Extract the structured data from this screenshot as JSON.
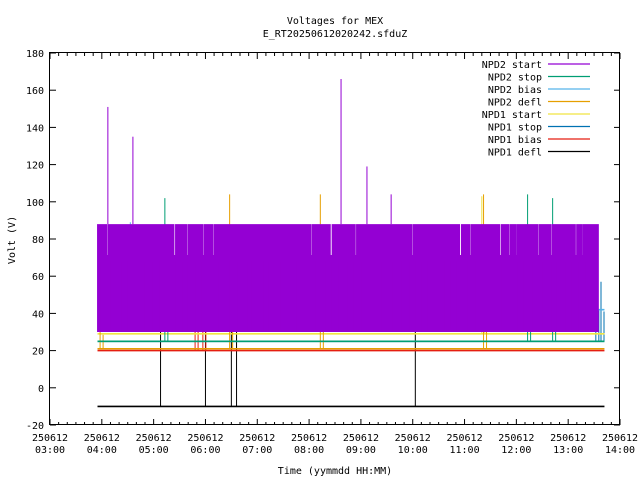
{
  "chart_data": {
    "type": "line",
    "title": "Voltages for MEX",
    "subtitle": "E_RT20250612020242.sfduZ",
    "xlabel": "Time (yymmdd HH:MM)",
    "ylabel": "Volt (V)",
    "xlim": [
      "250612 03:00",
      "250612 14:00"
    ],
    "ylim": [
      -20,
      180
    ],
    "x_ticks": [
      {
        "date": "250612",
        "time": "03:00"
      },
      {
        "date": "250612",
        "time": "04:00"
      },
      {
        "date": "250612",
        "time": "05:00"
      },
      {
        "date": "250612",
        "time": "06:00"
      },
      {
        "date": "250612",
        "time": "07:00"
      },
      {
        "date": "250612",
        "time": "08:00"
      },
      {
        "date": "250612",
        "time": "09:00"
      },
      {
        "date": "250612",
        "time": "10:00"
      },
      {
        "date": "250612",
        "time": "11:00"
      },
      {
        "date": "250612",
        "time": "12:00"
      },
      {
        "date": "250612",
        "time": "13:00"
      },
      {
        "date": "250612",
        "time": "14:00"
      }
    ],
    "y_ticks": [
      "-20",
      "0",
      "20",
      "40",
      "60",
      "80",
      "100",
      "120",
      "140",
      "160",
      "180"
    ],
    "legend_position": "top-right",
    "grid": false,
    "series": [
      {
        "name": "NPD2 start",
        "color": "#9400d3",
        "data_range": [
          "250612 03:55",
          "250612 13:35"
        ],
        "levels": [
          71,
          88,
          30
        ],
        "spikes": [
          {
            "time": "250612 04:07",
            "value": 151
          },
          {
            "time": "250612 04:36",
            "value": 135
          },
          {
            "time": "250612 08:37",
            "value": 166
          },
          {
            "time": "250612 09:07",
            "value": 119
          },
          {
            "time": "250612 09:35",
            "value": 104
          }
        ]
      },
      {
        "name": "NPD2 stop",
        "color": "#009e73",
        "data_range": [
          "250612 03:55",
          "250612 13:42"
        ],
        "levels": [
          25
        ],
        "spikes": [
          {
            "time": "250612 05:13",
            "value": 102
          },
          {
            "time": "250612 12:13",
            "value": 104
          },
          {
            "time": "250612 12:42",
            "value": 102
          }
        ]
      },
      {
        "name": "NPD2 bias",
        "color": "#56b4e9",
        "data_range": [
          "250612 03:55",
          "250612 13:42"
        ],
        "levels": [
          42
        ],
        "spikes": [
          {
            "time": "250612 04:33",
            "value": 89
          }
        ]
      },
      {
        "name": "NPD2 defl",
        "color": "#e69f00",
        "data_range": [
          "250612 03:55",
          "250612 13:42"
        ],
        "levels": [
          21
        ],
        "spikes": [
          {
            "time": "250612 03:58",
            "value": 36
          },
          {
            "time": "250612 06:28",
            "value": 104
          },
          {
            "time": "250612 08:13",
            "value": 104
          },
          {
            "time": "250612 11:22",
            "value": 104
          }
        ]
      },
      {
        "name": "NPD1 start",
        "color": "#f0e442",
        "data_range": [
          "250612 03:55",
          "250612 13:42"
        ],
        "levels": [
          29
        ],
        "spikes": [
          {
            "time": "250612 11:20",
            "value": 103
          }
        ]
      },
      {
        "name": "NPD1 stop",
        "color": "#0072b2",
        "data_range": [
          "250612 03:55",
          "250612 13:42"
        ],
        "levels": [
          25
        ],
        "spikes": [
          {
            "time": "250612 13:32",
            "value": 58
          },
          {
            "time": "250612 13:38",
            "value": 57
          }
        ]
      },
      {
        "name": "NPD1 bias",
        "color": "#e51e10",
        "data_range": [
          "250612 03:55",
          "250612 13:42"
        ],
        "levels": [
          20
        ],
        "spikes": [
          {
            "time": "250612 05:48",
            "value": 64
          },
          {
            "time": "250612 05:57",
            "value": 67
          }
        ]
      },
      {
        "name": "NPD1 defl",
        "color": "#000000",
        "data_range": [
          "250612 03:55",
          "250612 13:42"
        ],
        "levels": [
          -10
        ],
        "spikes": [
          {
            "time": "250612 05:08",
            "value": 72
          },
          {
            "time": "250612 06:00",
            "value": 73
          },
          {
            "time": "250612 06:30",
            "value": 55
          },
          {
            "time": "250612 06:36",
            "value": 52
          },
          {
            "time": "250612 10:03",
            "value": 72
          }
        ]
      }
    ]
  }
}
